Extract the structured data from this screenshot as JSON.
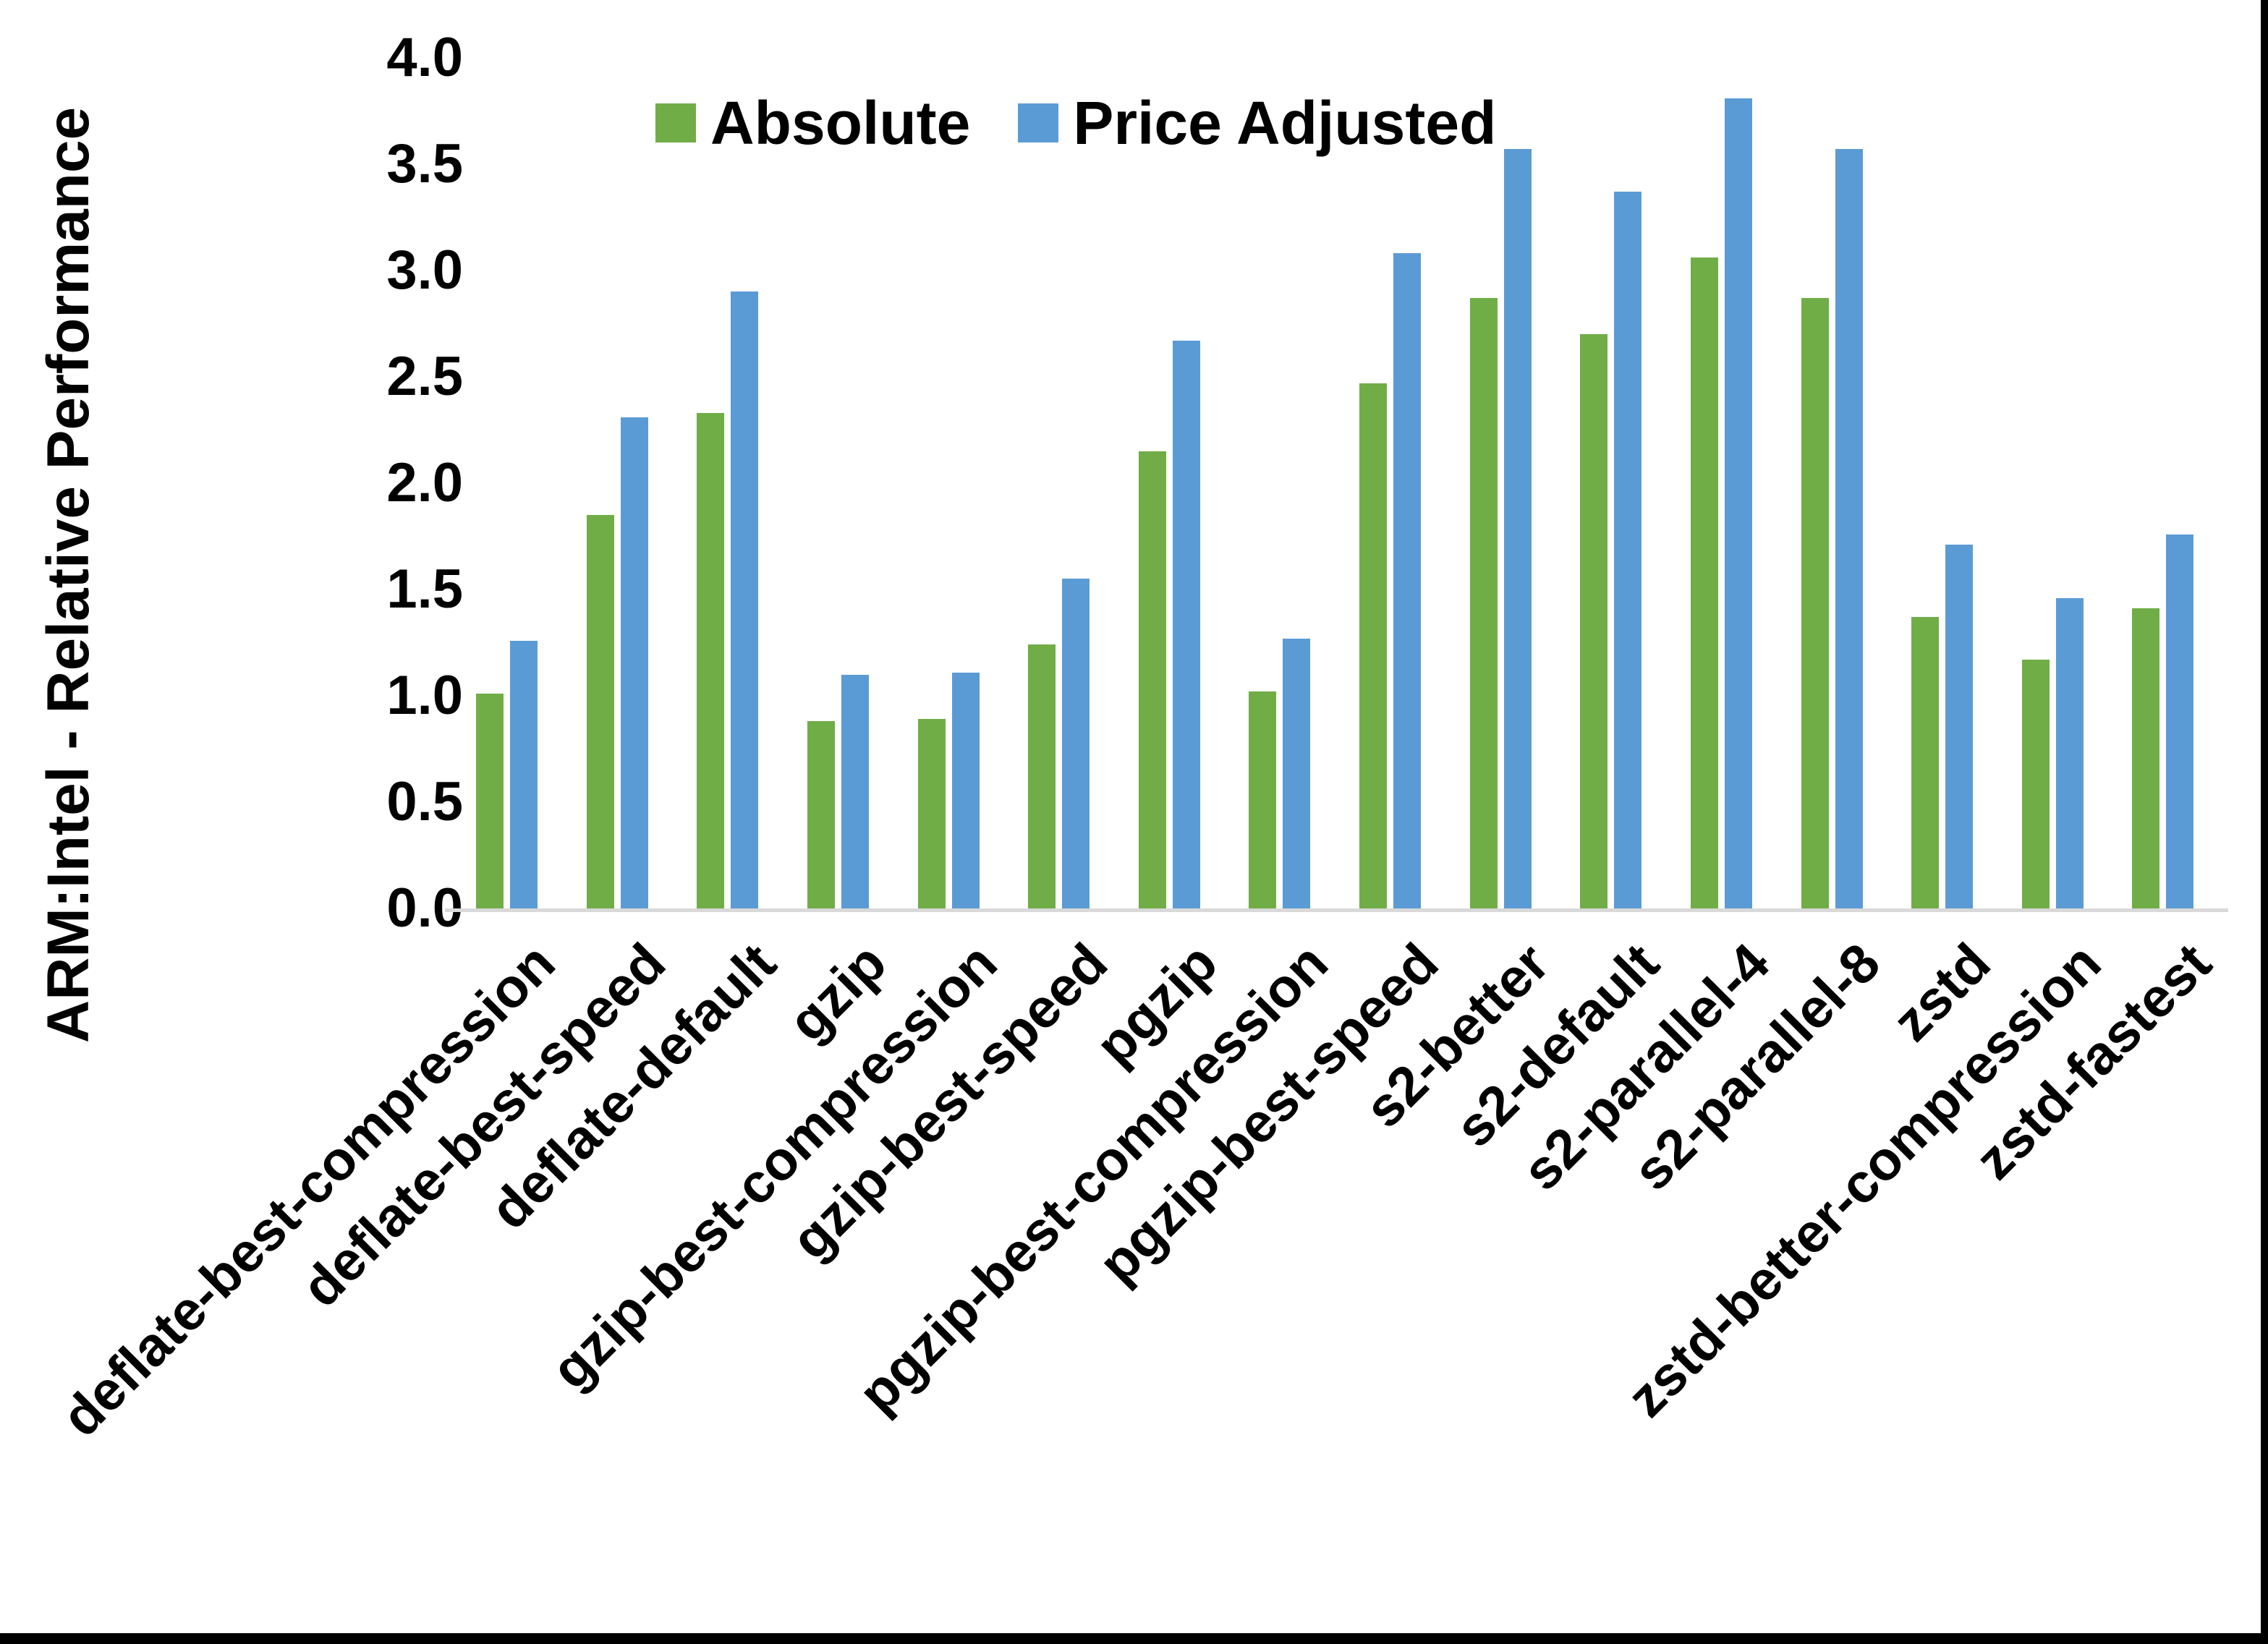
{
  "chart_data": {
    "type": "bar",
    "title": "",
    "xlabel": "",
    "ylabel": "ARM:Intel - Relative Performance",
    "ylim": [
      0.0,
      4.0
    ],
    "ytick_step": 0.5,
    "ytick_labels": [
      "4.0",
      "3.5",
      "3.0",
      "2.5",
      "2.0",
      "1.5",
      "1.0",
      "0.5",
      "0.0"
    ],
    "grid": false,
    "legend_position": "top-center-inside",
    "categories": [
      "deflate-best-compression",
      "deflate-best-speed",
      "deflate-default",
      "gzip",
      "gzip-best-compression",
      "gzip-best-speed",
      "pgzip",
      "pgzip-best-compression",
      "pgzip-best-speed",
      "s2-better",
      "s2-default",
      "s2-parallel-4",
      "s2-parallel-8",
      "zstd",
      "zstd-better-compression",
      "zstd-fastest"
    ],
    "series": [
      {
        "name": "Absolute",
        "color": "#70AD47",
        "values": [
          1.01,
          1.85,
          2.33,
          0.88,
          0.89,
          1.24,
          2.15,
          1.02,
          2.47,
          2.87,
          2.7,
          3.06,
          2.87,
          1.37,
          1.17,
          1.41
        ]
      },
      {
        "name": "Price Adjusted",
        "color": "#5B9BD5",
        "values": [
          1.26,
          2.31,
          2.9,
          1.1,
          1.11,
          1.55,
          2.67,
          1.27,
          3.08,
          3.57,
          3.37,
          3.81,
          3.57,
          1.71,
          1.46,
          1.76
        ]
      }
    ]
  },
  "colors": {
    "background": "#FFFFFF",
    "frame": "#000000",
    "axis_line": "#D9D9D9",
    "text": "#000000"
  }
}
